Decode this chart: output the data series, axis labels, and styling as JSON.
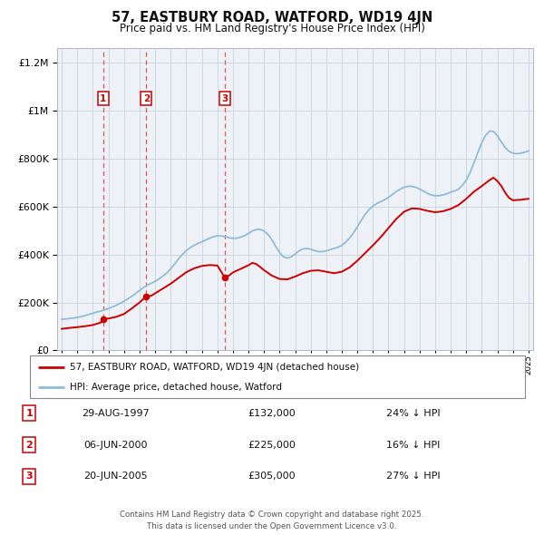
{
  "title": "57, EASTBURY ROAD, WATFORD, WD19 4JN",
  "subtitle": "Price paid vs. HM Land Registry's House Price Index (HPI)",
  "fig_bg_color": "#e8edf2",
  "plot_bg_color": "#eef2f7",
  "grid_color": "#c8d4e0",
  "red_line_color": "#cc0000",
  "blue_line_color": "#90bcd8",
  "legend_label_red": "57, EASTBURY ROAD, WATFORD, WD19 4JN (detached house)",
  "legend_label_blue": "HPI: Average price, detached house, Watford",
  "footer": "Contains HM Land Registry data © Crown copyright and database right 2025.\nThis data is licensed under the Open Government Licence v3.0.",
  "transactions": [
    {
      "num": 1,
      "date": "29-AUG-1997",
      "price": "£132,000",
      "pct": "24% ↓ HPI",
      "year": 1997.66
    },
    {
      "num": 2,
      "date": "06-JUN-2000",
      "price": "£225,000",
      "pct": "16% ↓ HPI",
      "year": 2000.43
    },
    {
      "num": 3,
      "date": "20-JUN-2005",
      "price": "£305,000",
      "pct": "27% ↓ HPI",
      "year": 2005.47
    }
  ],
  "transaction_prices": [
    132000,
    225000,
    305000
  ],
  "ylim": [
    0,
    1260000
  ],
  "yticks": [
    0,
    200000,
    400000,
    600000,
    800000,
    1000000,
    1200000
  ],
  "xlim_start": 1994.7,
  "xlim_end": 2025.3,
  "hpi_data": [
    [
      1995.0,
      130000
    ],
    [
      1995.25,
      131500
    ],
    [
      1995.5,
      133000
    ],
    [
      1995.75,
      135000
    ],
    [
      1996.0,
      138000
    ],
    [
      1996.25,
      141000
    ],
    [
      1996.5,
      145000
    ],
    [
      1996.75,
      150000
    ],
    [
      1997.0,
      155000
    ],
    [
      1997.25,
      160000
    ],
    [
      1997.5,
      164000
    ],
    [
      1997.75,
      169000
    ],
    [
      1998.0,
      175000
    ],
    [
      1998.25,
      181000
    ],
    [
      1998.5,
      188000
    ],
    [
      1998.75,
      196000
    ],
    [
      1999.0,
      205000
    ],
    [
      1999.25,
      215000
    ],
    [
      1999.5,
      226000
    ],
    [
      1999.75,
      238000
    ],
    [
      2000.0,
      250000
    ],
    [
      2000.25,
      262000
    ],
    [
      2000.5,
      272000
    ],
    [
      2000.75,
      280000
    ],
    [
      2001.0,
      288000
    ],
    [
      2001.25,
      298000
    ],
    [
      2001.5,
      310000
    ],
    [
      2001.75,
      323000
    ],
    [
      2002.0,
      340000
    ],
    [
      2002.25,
      360000
    ],
    [
      2002.5,
      381000
    ],
    [
      2002.75,
      400000
    ],
    [
      2003.0,
      416000
    ],
    [
      2003.25,
      428000
    ],
    [
      2003.5,
      438000
    ],
    [
      2003.75,
      446000
    ],
    [
      2004.0,
      453000
    ],
    [
      2004.25,
      460000
    ],
    [
      2004.5,
      468000
    ],
    [
      2004.75,
      474000
    ],
    [
      2005.0,
      478000
    ],
    [
      2005.25,
      477000
    ],
    [
      2005.5,
      474000
    ],
    [
      2005.75,
      470000
    ],
    [
      2006.0,
      467000
    ],
    [
      2006.25,
      468000
    ],
    [
      2006.5,
      472000
    ],
    [
      2006.75,
      478000
    ],
    [
      2007.0,
      488000
    ],
    [
      2007.25,
      498000
    ],
    [
      2007.5,
      504000
    ],
    [
      2007.75,
      505000
    ],
    [
      2008.0,
      498000
    ],
    [
      2008.25,
      484000
    ],
    [
      2008.5,
      462000
    ],
    [
      2008.75,
      434000
    ],
    [
      2009.0,
      408000
    ],
    [
      2009.25,
      390000
    ],
    [
      2009.5,
      385000
    ],
    [
      2009.75,
      390000
    ],
    [
      2010.0,
      402000
    ],
    [
      2010.25,
      415000
    ],
    [
      2010.5,
      423000
    ],
    [
      2010.75,
      425000
    ],
    [
      2011.0,
      422000
    ],
    [
      2011.25,
      416000
    ],
    [
      2011.5,
      412000
    ],
    [
      2011.75,
      412000
    ],
    [
      2012.0,
      415000
    ],
    [
      2012.25,
      420000
    ],
    [
      2012.5,
      425000
    ],
    [
      2012.75,
      430000
    ],
    [
      2013.0,
      438000
    ],
    [
      2013.25,
      451000
    ],
    [
      2013.5,
      468000
    ],
    [
      2013.75,
      490000
    ],
    [
      2014.0,
      515000
    ],
    [
      2014.25,
      542000
    ],
    [
      2014.5,
      567000
    ],
    [
      2014.75,
      587000
    ],
    [
      2015.0,
      602000
    ],
    [
      2015.25,
      612000
    ],
    [
      2015.5,
      620000
    ],
    [
      2015.75,
      628000
    ],
    [
      2016.0,
      638000
    ],
    [
      2016.25,
      650000
    ],
    [
      2016.5,
      662000
    ],
    [
      2016.75,
      672000
    ],
    [
      2017.0,
      680000
    ],
    [
      2017.25,
      684000
    ],
    [
      2017.5,
      684000
    ],
    [
      2017.75,
      680000
    ],
    [
      2018.0,
      673000
    ],
    [
      2018.25,
      664000
    ],
    [
      2018.5,
      655000
    ],
    [
      2018.75,
      648000
    ],
    [
      2019.0,
      645000
    ],
    [
      2019.25,
      645000
    ],
    [
      2019.5,
      648000
    ],
    [
      2019.75,
      653000
    ],
    [
      2020.0,
      660000
    ],
    [
      2020.25,
      665000
    ],
    [
      2020.5,
      672000
    ],
    [
      2020.75,
      688000
    ],
    [
      2021.0,
      710000
    ],
    [
      2021.25,
      742000
    ],
    [
      2021.5,
      782000
    ],
    [
      2021.75,
      825000
    ],
    [
      2022.0,
      866000
    ],
    [
      2022.25,
      897000
    ],
    [
      2022.5,
      914000
    ],
    [
      2022.75,
      913000
    ],
    [
      2023.0,
      895000
    ],
    [
      2023.25,
      870000
    ],
    [
      2023.5,
      846000
    ],
    [
      2023.75,
      830000
    ],
    [
      2024.0,
      822000
    ],
    [
      2024.25,
      820000
    ],
    [
      2024.5,
      822000
    ],
    [
      2024.75,
      826000
    ],
    [
      2025.0,
      832000
    ]
  ],
  "red_data": [
    [
      1995.0,
      90000
    ],
    [
      1995.5,
      94000
    ],
    [
      1996.0,
      97000
    ],
    [
      1996.5,
      101000
    ],
    [
      1997.0,
      106000
    ],
    [
      1997.5,
      116000
    ],
    [
      1997.66,
      132000
    ],
    [
      1998.0,
      133000
    ],
    [
      1998.5,
      140000
    ],
    [
      1999.0,
      152000
    ],
    [
      1999.5,
      175000
    ],
    [
      2000.0,
      200000
    ],
    [
      2000.43,
      225000
    ],
    [
      2000.75,
      228000
    ],
    [
      2001.0,
      238000
    ],
    [
      2001.5,
      258000
    ],
    [
      2002.0,
      278000
    ],
    [
      2002.5,
      302000
    ],
    [
      2003.0,
      326000
    ],
    [
      2003.5,
      342000
    ],
    [
      2004.0,
      352000
    ],
    [
      2004.5,
      356000
    ],
    [
      2005.0,
      354000
    ],
    [
      2005.47,
      305000
    ],
    [
      2005.75,
      312000
    ],
    [
      2006.0,
      325000
    ],
    [
      2006.5,
      340000
    ],
    [
      2007.0,
      355000
    ],
    [
      2007.25,
      365000
    ],
    [
      2007.5,
      360000
    ],
    [
      2007.75,
      348000
    ],
    [
      2008.0,
      335000
    ],
    [
      2008.5,
      312000
    ],
    [
      2009.0,
      298000
    ],
    [
      2009.5,
      296000
    ],
    [
      2010.0,
      308000
    ],
    [
      2010.5,
      322000
    ],
    [
      2011.0,
      332000
    ],
    [
      2011.5,
      334000
    ],
    [
      2012.0,
      328000
    ],
    [
      2012.5,
      322000
    ],
    [
      2013.0,
      328000
    ],
    [
      2013.5,
      346000
    ],
    [
      2014.0,
      374000
    ],
    [
      2014.5,
      406000
    ],
    [
      2015.0,
      438000
    ],
    [
      2015.5,
      472000
    ],
    [
      2016.0,
      510000
    ],
    [
      2016.5,
      548000
    ],
    [
      2017.0,
      578000
    ],
    [
      2017.5,
      592000
    ],
    [
      2018.0,
      590000
    ],
    [
      2018.5,
      582000
    ],
    [
      2019.0,
      576000
    ],
    [
      2019.5,
      580000
    ],
    [
      2020.0,
      590000
    ],
    [
      2020.5,
      606000
    ],
    [
      2021.0,
      632000
    ],
    [
      2021.5,
      662000
    ],
    [
      2022.0,
      685000
    ],
    [
      2022.5,
      710000
    ],
    [
      2022.75,
      720000
    ],
    [
      2023.0,
      706000
    ],
    [
      2023.25,
      686000
    ],
    [
      2023.5,
      658000
    ],
    [
      2023.75,
      636000
    ],
    [
      2024.0,
      626000
    ],
    [
      2024.5,
      628000
    ],
    [
      2025.0,
      632000
    ]
  ]
}
